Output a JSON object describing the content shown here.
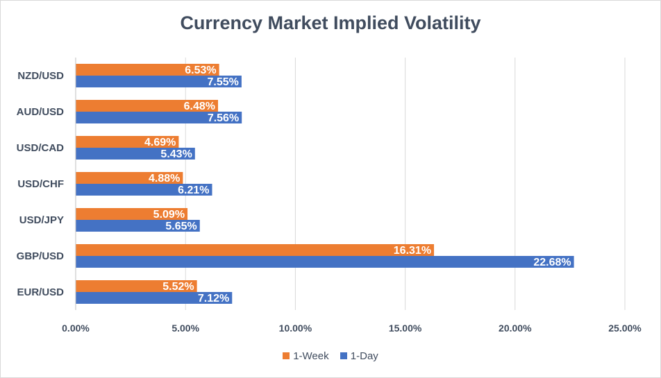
{
  "chart_data": {
    "type": "bar",
    "orientation": "horizontal",
    "title": "Currency Market Implied Volatility",
    "categories": [
      "NZD/USD",
      "AUD/USD",
      "USD/CAD",
      "USD/CHF",
      "USD/JPY",
      "GBP/USD",
      "EUR/USD"
    ],
    "series": [
      {
        "name": "1-Week",
        "color": "#ed7d31",
        "values": [
          6.53,
          6.48,
          4.69,
          4.88,
          5.09,
          16.31,
          5.52
        ],
        "labels": [
          "6.53%",
          "6.48%",
          "4.69%",
          "4.88%",
          "5.09%",
          "16.31%",
          "5.52%"
        ]
      },
      {
        "name": "1-Day",
        "color": "#4472c4",
        "values": [
          7.55,
          7.56,
          5.43,
          6.21,
          5.65,
          22.68,
          7.12
        ],
        "labels": [
          "7.55%",
          "7.56%",
          "5.43%",
          "6.21%",
          "5.65%",
          "22.68%",
          "7.12%"
        ]
      }
    ],
    "xlim": [
      0,
      25
    ],
    "xticks": [
      0,
      5,
      10,
      15,
      20,
      25
    ],
    "xtick_labels": [
      "0.00%",
      "5.00%",
      "10.00%",
      "15.00%",
      "20.00%",
      "25.00%"
    ],
    "grid": true,
    "legend_position": "bottom"
  }
}
